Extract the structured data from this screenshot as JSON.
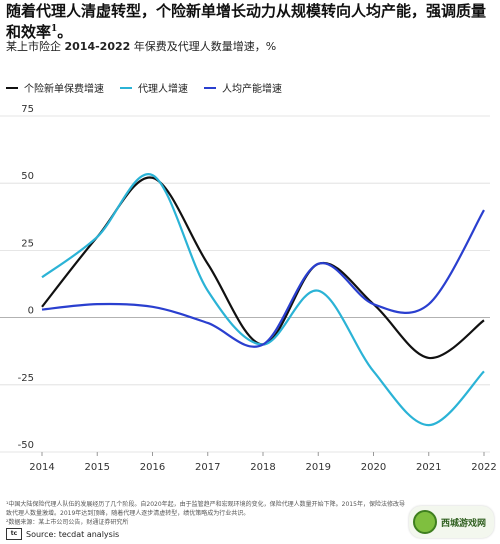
{
  "header": {
    "title": "随着代理人清虚转型，个险新单增长动力从规模转向人均产能，强调质量和效率",
    "title_sup": "1",
    "title_tail": "。",
    "subtitle_prefix": "某上市险企",
    "subtitle_years": "2014-2022",
    "subtitle_rest": "年保费及代理人数量增速，%"
  },
  "colors": {
    "new_premium": "#111111",
    "agent": "#2bb3d6",
    "productivity": "#2a3fcf",
    "grid": "#dddddd"
  },
  "chart_data": {
    "type": "line",
    "x": [
      "2014",
      "2015",
      "2016",
      "2017",
      "2018",
      "2019",
      "2020",
      "2021",
      "2022"
    ],
    "ylim": [
      -50,
      75
    ],
    "yticks": [
      "75",
      "50",
      "25",
      "0",
      "-25",
      "-50"
    ],
    "yticks_values": [
      75,
      50,
      25,
      0,
      -25,
      -50
    ],
    "legend_position": "top-left",
    "series": [
      {
        "name": "个险新单保费增速",
        "color": "#111111",
        "values": [
          4,
          30,
          52,
          20,
          -10,
          20,
          5,
          -15,
          -1
        ]
      },
      {
        "name": "代理人增速",
        "color": "#2bb3d6",
        "values": [
          15,
          30,
          53,
          10,
          -10,
          10,
          -20,
          -40,
          -20
        ]
      },
      {
        "name": "人均产能增速",
        "color": "#2a3fcf",
        "values": [
          3,
          5,
          4,
          -2,
          -10,
          20,
          5,
          5,
          40
        ]
      }
    ]
  },
  "footnote": {
    "line1": "¹中国大陆保险代理人队伍的发展经历了几个阶段。自2020年起，由于监管趋严和宏观环境的变化，保险代理人数量开始下降。2015年，保险法修改导",
    "line2": "致代理人数量激增。2019年达到顶峰，随着代理人逐步清虚转型，绩优策略成为行业共识。",
    "line3": "²数据来源：某上市公司公告，财通证券研究所"
  },
  "source": {
    "logo_text": "tc",
    "label": "Source: tecdat analysis"
  },
  "watermark": {
    "text": "西城游戏网"
  }
}
